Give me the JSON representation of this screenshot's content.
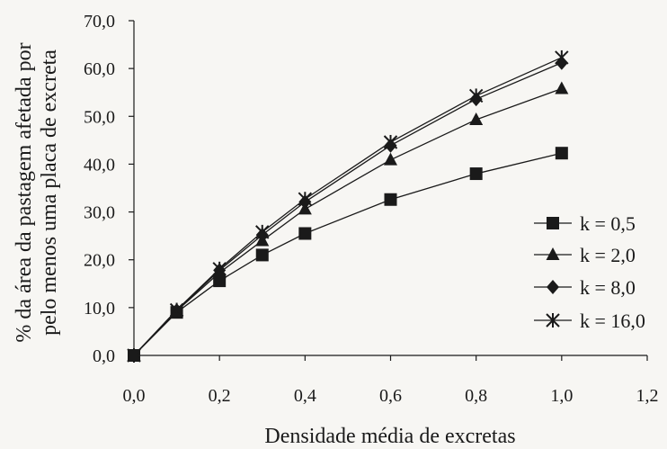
{
  "chart_data": {
    "type": "line",
    "title": "",
    "xlabel": "Densidade média de excretas",
    "ylabel_lines": [
      "% da área da pastagem afetada por",
      "pelo menos uma placa de excreta"
    ],
    "xlim": [
      0,
      1.2
    ],
    "ylim": [
      0,
      70
    ],
    "xticks": [
      0,
      0.2,
      0.4,
      0.6,
      0.8,
      1.0,
      1.2
    ],
    "xtick_labels": [
      "0,0",
      "0,2",
      "0,4",
      "0,6",
      "0,8",
      "1,0",
      "1,2"
    ],
    "yticks": [
      0,
      10,
      20,
      30,
      40,
      50,
      60,
      70
    ],
    "ytick_labels": [
      "0,0",
      "10,0",
      "20,0",
      "30,0",
      "40,0",
      "50,0",
      "60,0",
      "70,0"
    ],
    "grid": false,
    "legend_position": "bottom-right",
    "x": [
      0,
      0.1,
      0.2,
      0.3,
      0.4,
      0.6,
      0.8,
      1.0
    ],
    "series": [
      {
        "name": "k = 0,5",
        "marker": "square",
        "values": [
          0,
          9.0,
          15.6,
          21.0,
          25.5,
          32.6,
          38.0,
          42.3
        ]
      },
      {
        "name": "k = 2,0",
        "marker": "triangle",
        "values": [
          0,
          9.3,
          17.3,
          24.0,
          30.6,
          40.9,
          49.3,
          55.8
        ]
      },
      {
        "name": "k = 8,0",
        "marker": "diamond",
        "values": [
          0,
          9.4,
          17.8,
          25.2,
          32.1,
          43.9,
          53.6,
          61.2
        ]
      },
      {
        "name": "k = 16,0",
        "marker": "asterisk",
        "values": [
          0,
          9.5,
          18.1,
          25.8,
          32.7,
          44.6,
          54.3,
          62.3
        ]
      }
    ]
  }
}
